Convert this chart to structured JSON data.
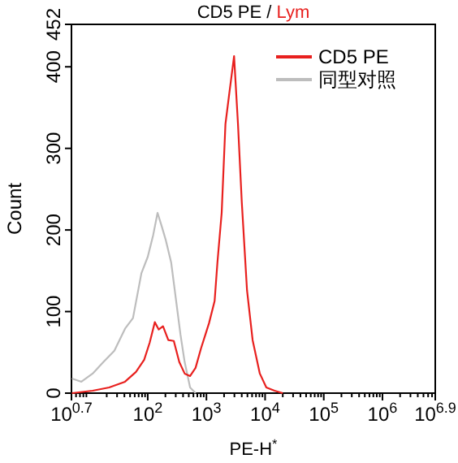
{
  "chart_data": {
    "type": "line",
    "title": "CD5 PE / Lym",
    "xlabel": "PE-H$^{*}$",
    "ylabel": "Count",
    "log": "x",
    "legend": "top right",
    "grid": false,
    "xlim": [
      5.012,
      7943282
    ],
    "xticks": [
      {
        "value": 5.012,
        "label": "10$^{0.7}$"
      },
      {
        "value": 100,
        "label": "10$^{2}$"
      },
      {
        "value": 1000,
        "label": "10$^{3}$"
      },
      {
        "value": 10000,
        "label": "10$^{4}$"
      },
      {
        "value": 100000,
        "label": "10$^{5}$"
      },
      {
        "value": 1000000,
        "label": "10$^{6}$"
      },
      {
        "value": 7943282,
        "label": "10$^{6.9}$"
      }
    ],
    "ylim": [
      0,
      452
    ],
    "yticks": [
      0,
      100,
      200,
      300,
      400,
      452
    ],
    "series": [
      {
        "name": "CD5 PE",
        "color": "#e8201e",
        "x": [
          5.1,
          11.5,
          22,
          41,
          63,
          87,
          108,
          132,
          154,
          182,
          224,
          278,
          345,
          426,
          527,
          653,
          810,
          1110,
          1380,
          1540,
          1820,
          2110,
          2450,
          2960,
          3450,
          4000,
          4920,
          6130,
          8130,
          10500,
          14500,
          20000
        ],
        "values": [
          0,
          3,
          7,
          14,
          26,
          41,
          62,
          87,
          78,
          82,
          65,
          64,
          38,
          24,
          21,
          31,
          55,
          86,
          113,
          160,
          221,
          330,
          367,
          413,
          330,
          235,
          126,
          65,
          24,
          7,
          3,
          0
        ]
      },
      {
        "name": "同型对照",
        "color": "#bdbdbd",
        "x": [
          5.1,
          7.4,
          11.5,
          17.5,
          27,
          41,
          56,
          78,
          100,
          124,
          147,
          174,
          204,
          251,
          296,
          361,
          426,
          527,
          653
        ],
        "values": [
          18,
          14,
          24,
          38,
          52,
          79,
          92,
          147,
          167,
          194,
          221,
          204,
          187,
          160,
          120,
          72,
          38,
          7,
          0
        ]
      }
    ]
  }
}
